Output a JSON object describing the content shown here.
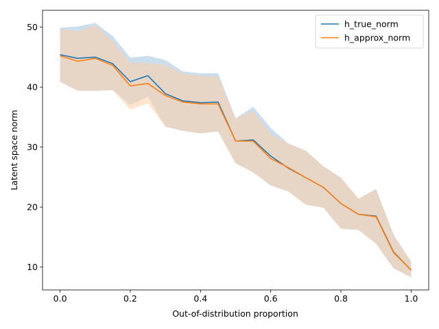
{
  "chart_data": {
    "type": "line",
    "title": "",
    "xlabel": "Out-of-distribution proportion",
    "ylabel": "Latent space norm",
    "xlim": [
      -0.05,
      1.05
    ],
    "ylim": [
      6.2,
      52.8
    ],
    "xticks": [
      0.0,
      0.2,
      0.4,
      0.6,
      0.8,
      1.0
    ],
    "xtick_labels": [
      "0.0",
      "0.2",
      "0.4",
      "0.6",
      "0.8",
      "1.0"
    ],
    "yticks": [
      10,
      20,
      30,
      40,
      50
    ],
    "ytick_labels": [
      "10",
      "20",
      "30",
      "40",
      "50"
    ],
    "grid": false,
    "legend_position": "top-right",
    "x": [
      0.0,
      0.05,
      0.1,
      0.15,
      0.2,
      0.25,
      0.3,
      0.35,
      0.4,
      0.45,
      0.5,
      0.55,
      0.6,
      0.65,
      0.7,
      0.75,
      0.8,
      0.85,
      0.9,
      0.95,
      1.0
    ],
    "series": [
      {
        "name": "h_true_norm",
        "color": "#1f77b4",
        "band_color": "#a6c8e3",
        "values": [
          45.4,
          44.8,
          45.0,
          43.9,
          40.9,
          41.9,
          38.9,
          37.7,
          37.4,
          37.5,
          31.0,
          31.2,
          28.5,
          26.5,
          24.9,
          23.3,
          20.6,
          18.8,
          18.5,
          12.5,
          9.5
        ],
        "upper": [
          49.9,
          50.1,
          50.7,
          48.5,
          44.9,
          45.2,
          44.5,
          42.6,
          42.3,
          42.3,
          34.8,
          36.7,
          33.2,
          30.6,
          29.4,
          26.8,
          24.9,
          21.4,
          23.0,
          15.4,
          10.9
        ],
        "lower": [
          40.9,
          39.4,
          39.4,
          39.5,
          37.0,
          38.4,
          33.4,
          32.7,
          32.3,
          32.6,
          27.3,
          25.8,
          23.6,
          22.6,
          20.4,
          19.9,
          16.4,
          16.2,
          13.9,
          9.8,
          8.3
        ]
      },
      {
        "name": "h_approx_norm",
        "color": "#ff7f0e",
        "band_color": "#ffd0a6",
        "values": [
          45.2,
          44.3,
          44.8,
          43.6,
          40.2,
          40.6,
          38.6,
          37.5,
          37.2,
          37.2,
          31.0,
          31.0,
          28.1,
          26.6,
          24.9,
          23.3,
          20.6,
          18.8,
          18.4,
          12.4,
          9.5
        ],
        "upper": [
          49.7,
          49.3,
          50.3,
          47.6,
          44.1,
          44.0,
          43.7,
          42.2,
          41.9,
          41.7,
          34.8,
          36.0,
          32.2,
          30.6,
          29.4,
          26.8,
          24.9,
          21.4,
          23.0,
          15.4,
          10.9
        ],
        "lower": [
          40.9,
          39.4,
          39.4,
          39.5,
          36.2,
          37.3,
          33.4,
          32.7,
          32.3,
          32.6,
          27.3,
          25.8,
          23.6,
          22.6,
          20.4,
          19.9,
          16.4,
          16.2,
          13.9,
          9.8,
          8.3
        ]
      }
    ]
  }
}
